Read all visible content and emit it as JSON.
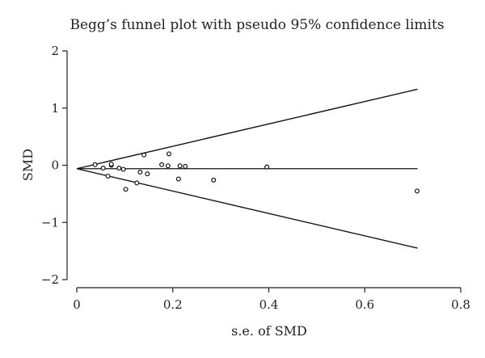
{
  "chart_data": {
    "type": "scatter",
    "title": "Begg’s funnel plot with pseudo 95% confidence limits",
    "xlabel": "s.e. of SMD",
    "ylabel": "SMD",
    "xlim": [
      0,
      0.8
    ],
    "ylim": [
      -2,
      2
    ],
    "x_ticks": [
      "0",
      "0.2",
      "0.4",
      "0.6",
      "0.8"
    ],
    "y_ticks": [
      "2",
      "1",
      "0",
      "−1",
      "−2"
    ],
    "x_tick_values": [
      0,
      0.2,
      0.4,
      0.6,
      0.8
    ],
    "y_tick_values": [
      2,
      1,
      0,
      -1,
      -2
    ],
    "pooled_estimate": -0.06,
    "pseudo_ci_limits": {
      "x": [
        0,
        0.71
      ],
      "upper": [
        -0.06,
        1.33
      ],
      "lower": [
        -0.06,
        -1.45
      ]
    },
    "points": [
      {
        "x": 0.038,
        "y": 0.01
      },
      {
        "x": 0.055,
        "y": -0.05
      },
      {
        "x": 0.065,
        "y": -0.19
      },
      {
        "x": 0.072,
        "y": 0.0
      },
      {
        "x": 0.072,
        "y": 0.02
      },
      {
        "x": 0.088,
        "y": -0.05
      },
      {
        "x": 0.097,
        "y": -0.07
      },
      {
        "x": 0.102,
        "y": -0.42
      },
      {
        "x": 0.125,
        "y": -0.31
      },
      {
        "x": 0.132,
        "y": -0.12
      },
      {
        "x": 0.14,
        "y": 0.18
      },
      {
        "x": 0.147,
        "y": -0.15
      },
      {
        "x": 0.177,
        "y": 0.01
      },
      {
        "x": 0.19,
        "y": -0.01
      },
      {
        "x": 0.192,
        "y": 0.2
      },
      {
        "x": 0.212,
        "y": -0.24
      },
      {
        "x": 0.215,
        "y": -0.01
      },
      {
        "x": 0.226,
        "y": -0.02
      },
      {
        "x": 0.285,
        "y": -0.26
      },
      {
        "x": 0.396,
        "y": -0.03
      },
      {
        "x": 0.709,
        "y": -0.45
      }
    ],
    "grid": false,
    "legend": "none"
  }
}
